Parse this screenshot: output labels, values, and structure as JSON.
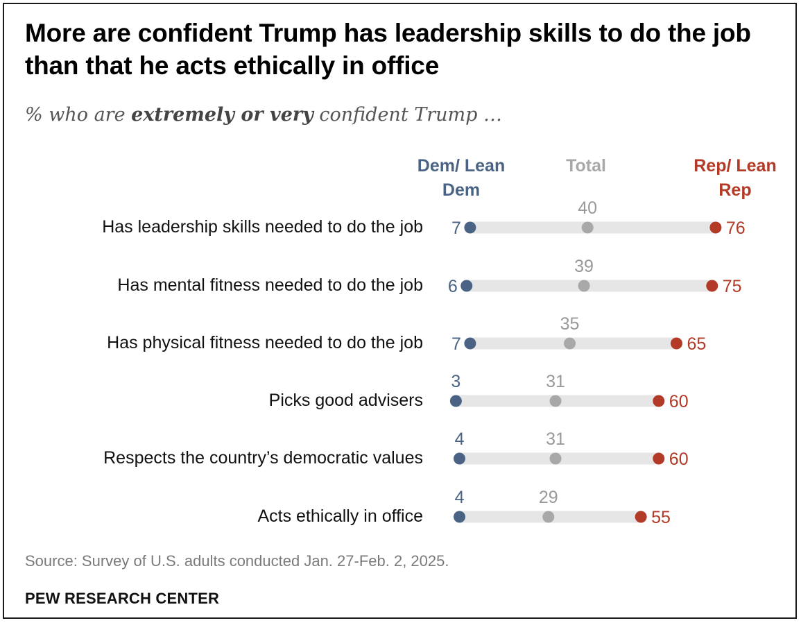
{
  "title": "More are confident Trump has leadership skills to do the job than that he acts ethically in office",
  "subtitle": {
    "prefix": "% who are ",
    "emphasis": "extremely or very",
    "suffix": " confident Trump …"
  },
  "colors": {
    "dem": "#4a6384",
    "total": "#a8a8a8",
    "rep": "#b23a26",
    "bar": "#e6e6e6"
  },
  "chart_data": {
    "type": "dot",
    "column_headers": {
      "dem": "Dem/ Lean Dem",
      "total": "Total",
      "rep": "Rep/ Lean Rep"
    },
    "categories": [
      "Has leadership skills needed to do the job",
      "Has mental fitness needed to do the job",
      "Has physical fitness needed to do the job",
      "Picks good advisers",
      "Respects the country’s democratic values",
      "Acts ethically in office"
    ],
    "series": [
      {
        "name": "Dem/Lean Dem",
        "values": [
          7,
          6,
          7,
          3,
          4,
          4
        ]
      },
      {
        "name": "Total",
        "values": [
          40,
          39,
          35,
          31,
          31,
          29
        ]
      },
      {
        "name": "Rep/Lean Rep",
        "values": [
          76,
          75,
          65,
          60,
          60,
          55
        ]
      }
    ]
  },
  "source": "Source: Survey of U.S. adults conducted Jan. 27-Feb. 2, 2025.",
  "brand": "PEW RESEARCH CENTER"
}
